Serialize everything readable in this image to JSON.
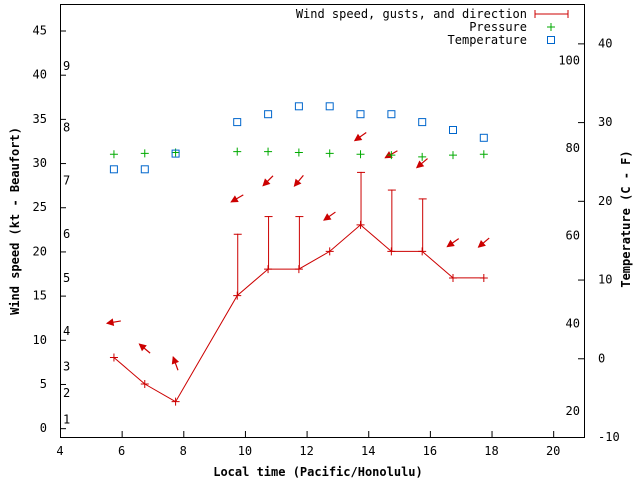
{
  "chart_data": {
    "type": "line",
    "title": "",
    "xlabel": "Local time (Pacific/Honolulu)",
    "ylabel": "Wind speed (kt - Beaufort)",
    "y2label": "Temperature (C - F)",
    "xlim": [
      4,
      21
    ],
    "ylim": [
      -1,
      48
    ],
    "y2lim": [
      -10,
      45
    ],
    "xticks": [
      4,
      6,
      8,
      10,
      12,
      14,
      16,
      18,
      20
    ],
    "yticks": [
      0,
      5,
      10,
      15,
      20,
      25,
      30,
      35,
      40,
      45
    ],
    "y2ticks": [
      -10,
      0,
      10,
      20,
      30,
      40
    ],
    "beaufort_ticks": [
      {
        "label": "1",
        "kt": 1
      },
      {
        "label": "2",
        "kt": 4
      },
      {
        "label": "3",
        "kt": 7
      },
      {
        "label": "4",
        "kt": 11
      },
      {
        "label": "5",
        "kt": 17
      },
      {
        "label": "6",
        "kt": 22
      },
      {
        "label": "7",
        "kt": 28
      },
      {
        "label": "8",
        "kt": 34
      },
      {
        "label": "9",
        "kt": 41
      }
    ],
    "fahrenheit_ticks": [
      {
        "label": "20",
        "c": -6.7
      },
      {
        "label": "40",
        "c": 4.4
      },
      {
        "label": "60",
        "c": 15.6
      },
      {
        "label": "80",
        "c": 26.7
      },
      {
        "label": "100",
        "c": 37.8
      }
    ],
    "legend_position": "top-right",
    "series": [
      {
        "name": "Wind speed, gusts, and direction",
        "color": "#cc0000",
        "x": [
          5.75,
          6.75,
          7.75,
          9.75,
          10.75,
          11.75,
          12.75,
          13.75,
          14.75,
          15.75,
          16.75,
          17.75
        ],
        "speed": [
          8,
          5,
          3,
          15,
          18,
          18,
          20,
          23,
          20,
          20,
          17,
          17
        ],
        "gust": [
          8,
          5,
          3,
          22,
          24,
          24,
          20,
          29,
          27,
          26,
          17,
          17
        ],
        "arrow_y": [
          12,
          9,
          7.3,
          26,
          28,
          28,
          24,
          33,
          31,
          30,
          21,
          21
        ],
        "direction_from_deg": [
          80,
          130,
          160,
          60,
          45,
          40,
          55,
          55,
          60,
          50,
          55,
          50
        ]
      },
      {
        "name": "Pressure",
        "color": "#00aa00",
        "x": [
          5.75,
          6.75,
          7.75,
          9.75,
          10.75,
          11.75,
          12.75,
          13.75,
          14.75,
          15.75,
          16.75,
          17.75
        ],
        "values": [
          31.0,
          31.1,
          31.2,
          31.3,
          31.3,
          31.2,
          31.1,
          31.0,
          30.9,
          30.7,
          30.9,
          31.0
        ]
      },
      {
        "name": "Temperature",
        "color": "#0066cc",
        "axis": "y2",
        "x": [
          5.75,
          6.75,
          7.75,
          9.75,
          10.75,
          11.75,
          12.75,
          13.75,
          14.75,
          15.75,
          16.75,
          17.75
        ],
        "values": [
          24.0,
          24.0,
          26.0,
          30.0,
          31.0,
          32.0,
          32.0,
          31.0,
          31.0,
          30.0,
          29.0,
          28.0
        ]
      }
    ]
  }
}
